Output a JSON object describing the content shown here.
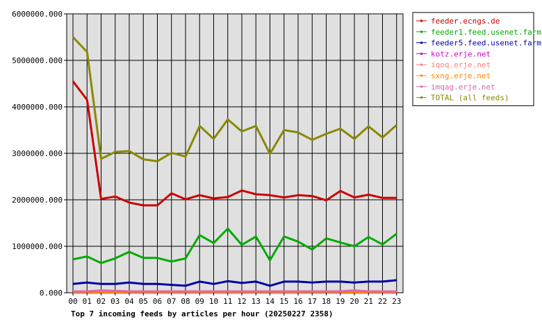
{
  "chart_data": {
    "type": "line",
    "title": "Top 7 incoming feeds by articles per hour (20250227 2358)",
    "x": [
      "00",
      "01",
      "02",
      "03",
      "04",
      "05",
      "06",
      "07",
      "08",
      "09",
      "10",
      "11",
      "12",
      "13",
      "14",
      "15",
      "16",
      "17",
      "18",
      "19",
      "20",
      "21",
      "22",
      "23"
    ],
    "y_ticks": [
      "0.000",
      "1000000.000",
      "2000000.000",
      "3000000.000",
      "4000000.000",
      "5000000.000",
      "6000000.000"
    ],
    "ylim": [
      0,
      6000000
    ],
    "grid": true,
    "legend_position": "right",
    "series": [
      {
        "name": "feeder.ecngs.de",
        "color": "#cc0000",
        "values": [
          4550000,
          4150000,
          2020000,
          2070000,
          1940000,
          1880000,
          1880000,
          2140000,
          2010000,
          2100000,
          2030000,
          2060000,
          2200000,
          2120000,
          2100000,
          2050000,
          2100000,
          2080000,
          1990000,
          2190000,
          2050000,
          2110000,
          2040000,
          2040000
        ]
      },
      {
        "name": "feeder1.feed.usenet.farm",
        "color": "#00aa00",
        "values": [
          720000,
          780000,
          640000,
          740000,
          880000,
          750000,
          750000,
          670000,
          740000,
          1240000,
          1070000,
          1380000,
          1030000,
          1210000,
          700000,
          1210000,
          1100000,
          930000,
          1170000,
          1080000,
          1000000,
          1200000,
          1040000,
          1270000
        ]
      },
      {
        "name": "feeder5.feed.usenet.farm",
        "color": "#0000aa",
        "values": [
          190000,
          220000,
          190000,
          190000,
          220000,
          190000,
          190000,
          170000,
          150000,
          240000,
          190000,
          250000,
          210000,
          240000,
          150000,
          240000,
          240000,
          220000,
          240000,
          240000,
          220000,
          240000,
          240000,
          270000
        ]
      },
      {
        "name": "kotz.erje.net",
        "color": "#cc00cc",
        "values": [
          5000,
          5000,
          5000,
          5000,
          5000,
          5000,
          5000,
          5000,
          5000,
          5000,
          5000,
          5000,
          5000,
          5000,
          5000,
          5000,
          5000,
          5000,
          5000,
          5000,
          5000,
          5000,
          5000,
          5000
        ]
      },
      {
        "name": "iqoq.erje.net",
        "color": "#ff8080",
        "values": [
          10000,
          10000,
          10000,
          10000,
          10000,
          10000,
          10000,
          10000,
          10000,
          10000,
          10000,
          10000,
          10000,
          10000,
          10000,
          10000,
          10000,
          10000,
          10000,
          10000,
          10000,
          10000,
          10000,
          10000
        ]
      },
      {
        "name": "sxng.erje.net",
        "color": "#ff8800",
        "values": [
          15000,
          15000,
          15000,
          15000,
          15000,
          15000,
          15000,
          15000,
          15000,
          15000,
          15000,
          15000,
          15000,
          15000,
          15000,
          15000,
          15000,
          15000,
          15000,
          15000,
          15000,
          15000,
          15000,
          15000
        ]
      },
      {
        "name": "imqag.erje.net",
        "color": "#dd66aa",
        "values": [
          30000,
          30000,
          50000,
          40000,
          30000,
          30000,
          30000,
          30000,
          30000,
          30000,
          30000,
          30000,
          30000,
          30000,
          30000,
          30000,
          30000,
          30000,
          30000,
          30000,
          50000,
          30000,
          30000,
          30000
        ]
      },
      {
        "name": "TOTAL (all feeds)",
        "color": "#888800",
        "values": [
          5500000,
          5180000,
          2880000,
          3030000,
          3050000,
          2870000,
          2830000,
          3010000,
          2930000,
          3590000,
          3310000,
          3730000,
          3470000,
          3590000,
          2990000,
          3500000,
          3450000,
          3290000,
          3420000,
          3530000,
          3310000,
          3580000,
          3340000,
          3610000
        ]
      }
    ]
  }
}
